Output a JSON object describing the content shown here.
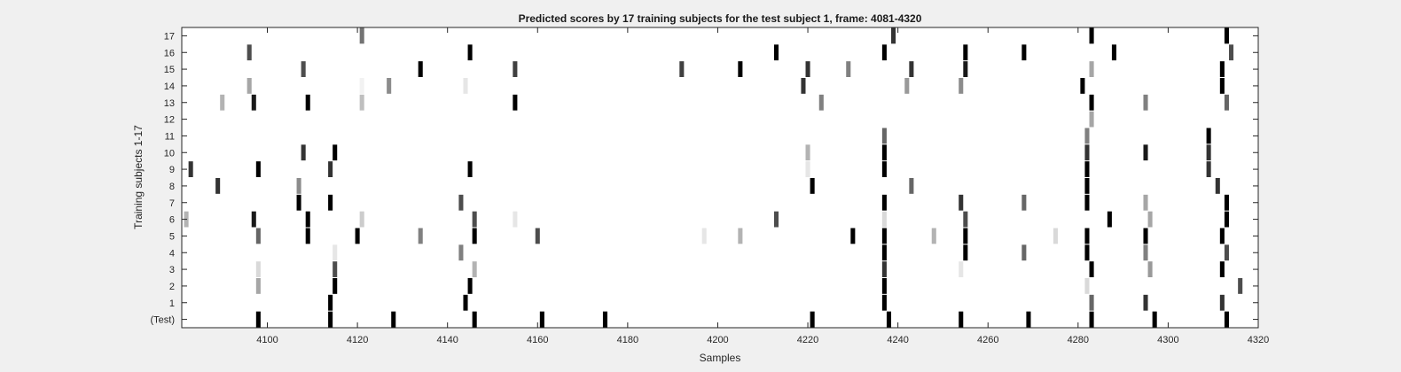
{
  "chart_data": {
    "type": "heatmap",
    "title": "Predicted scores by 17 training subjects for the test subject 1, frame: 4081-4320",
    "xlabel": "Samples",
    "ylabel": "Training subjects 1-17",
    "xlim": [
      4081,
      4320
    ],
    "x_ticks": [
      4100,
      4120,
      4140,
      4160,
      4180,
      4200,
      4220,
      4240,
      4260,
      4280,
      4300,
      4320
    ],
    "y_tick_labels": [
      "(Test)",
      "1",
      "2",
      "3",
      "4",
      "5",
      "6",
      "7",
      "8",
      "9",
      "10",
      "11",
      "12",
      "13",
      "14",
      "15",
      "16",
      "17"
    ],
    "colormap": "gray-inverted (white = 0, black = 1)",
    "grid": false,
    "rows": [
      {
        "label": "(Test)",
        "marks": [
          [
            4098,
            1
          ],
          [
            4114,
            1
          ],
          [
            4128,
            1
          ],
          [
            4146,
            1
          ],
          [
            4161,
            1
          ],
          [
            4175,
            1
          ],
          [
            4221,
            1
          ],
          [
            4238,
            1
          ],
          [
            4254,
            1
          ],
          [
            4269,
            1
          ],
          [
            4283,
            1
          ],
          [
            4297,
            1
          ],
          [
            4313,
            1
          ]
        ]
      },
      {
        "label": "1",
        "marks": [
          [
            4144,
            1
          ],
          [
            4114,
            1
          ],
          [
            4237,
            1
          ],
          [
            4283,
            0.6
          ],
          [
            4295,
            0.8
          ],
          [
            4312,
            0.8
          ]
        ]
      },
      {
        "label": "2",
        "marks": [
          [
            4098,
            0.35
          ],
          [
            4115,
            1
          ],
          [
            4145,
            1
          ],
          [
            4237,
            1
          ],
          [
            4282,
            0.15
          ],
          [
            4316,
            0.7
          ]
        ]
      },
      {
        "label": "3",
        "marks": [
          [
            4098,
            0.15
          ],
          [
            4115,
            0.7
          ],
          [
            4146,
            0.3
          ],
          [
            4237,
            0.8
          ],
          [
            4254,
            0.1
          ],
          [
            4283,
            1
          ],
          [
            4296,
            0.4
          ],
          [
            4312,
            1
          ]
        ]
      },
      {
        "label": "4",
        "marks": [
          [
            4115,
            0.1
          ],
          [
            4143,
            0.5
          ],
          [
            4237,
            1
          ],
          [
            4255,
            1
          ],
          [
            4268,
            0.6
          ],
          [
            4282,
            1
          ],
          [
            4295,
            0.5
          ],
          [
            4313,
            0.7
          ]
        ]
      },
      {
        "label": "5",
        "marks": [
          [
            4098,
            0.6
          ],
          [
            4109,
            1
          ],
          [
            4120,
            1
          ],
          [
            4134,
            0.5
          ],
          [
            4146,
            1
          ],
          [
            4160,
            0.7
          ],
          [
            4197,
            0.1
          ],
          [
            4205,
            0.3
          ],
          [
            4230,
            1
          ],
          [
            4237,
            1
          ],
          [
            4248,
            0.3
          ],
          [
            4255,
            1
          ],
          [
            4275,
            0.15
          ],
          [
            4282,
            1
          ],
          [
            4295,
            1
          ],
          [
            4312,
            1
          ]
        ]
      },
      {
        "label": "6",
        "marks": [
          [
            4082,
            0.3
          ],
          [
            4097,
            0.9
          ],
          [
            4109,
            1
          ],
          [
            4121,
            0.2
          ],
          [
            4146,
            0.7
          ],
          [
            4155,
            0.1
          ],
          [
            4213,
            0.7
          ],
          [
            4237,
            0.15
          ],
          [
            4255,
            0.7
          ],
          [
            4287,
            1
          ],
          [
            4296,
            0.35
          ],
          [
            4313,
            1
          ]
        ]
      },
      {
        "label": "7",
        "marks": [
          [
            4107,
            1
          ],
          [
            4114,
            1
          ],
          [
            4143,
            0.7
          ],
          [
            4237,
            1
          ],
          [
            4254,
            0.8
          ],
          [
            4268,
            0.6
          ],
          [
            4282,
            1
          ],
          [
            4295,
            0.35
          ],
          [
            4313,
            1
          ]
        ]
      },
      {
        "label": "8",
        "marks": [
          [
            4089,
            0.8
          ],
          [
            4107,
            0.45
          ],
          [
            4221,
            1
          ],
          [
            4243,
            0.6
          ],
          [
            4282,
            1
          ],
          [
            4311,
            0.8
          ]
        ]
      },
      {
        "label": "9",
        "marks": [
          [
            4083,
            0.8
          ],
          [
            4098,
            1
          ],
          [
            4114,
            0.8
          ],
          [
            4145,
            1
          ],
          [
            4220,
            0.1
          ],
          [
            4237,
            1
          ],
          [
            4282,
            1
          ],
          [
            4309,
            0.8
          ]
        ]
      },
      {
        "label": "10",
        "marks": [
          [
            4108,
            0.8
          ],
          [
            4115,
            1
          ],
          [
            4220,
            0.3
          ],
          [
            4237,
            1
          ],
          [
            4282,
            0.8
          ],
          [
            4295,
            0.9
          ],
          [
            4309,
            0.8
          ]
        ]
      },
      {
        "label": "11",
        "marks": [
          [
            4237,
            0.6
          ],
          [
            4282,
            0.5
          ],
          [
            4309,
            1
          ]
        ]
      },
      {
        "label": "12",
        "marks": [
          [
            4283,
            0.35
          ]
        ]
      },
      {
        "label": "13",
        "marks": [
          [
            4090,
            0.3
          ],
          [
            4097,
            0.9
          ],
          [
            4109,
            1
          ],
          [
            4121,
            0.25
          ],
          [
            4155,
            1
          ],
          [
            4223,
            0.5
          ],
          [
            4283,
            1
          ],
          [
            4295,
            0.5
          ],
          [
            4313,
            0.6
          ]
        ]
      },
      {
        "label": "14",
        "marks": [
          [
            4096,
            0.35
          ],
          [
            4121,
            0.05
          ],
          [
            4127,
            0.45
          ],
          [
            4144,
            0.1
          ],
          [
            4219,
            0.8
          ],
          [
            4242,
            0.4
          ],
          [
            4254,
            0.45
          ],
          [
            4281,
            1
          ],
          [
            4312,
            1
          ]
        ]
      },
      {
        "label": "15",
        "marks": [
          [
            4108,
            0.7
          ],
          [
            4134,
            1
          ],
          [
            4155,
            0.75
          ],
          [
            4192,
            0.75
          ],
          [
            4205,
            1
          ],
          [
            4220,
            0.8
          ],
          [
            4229,
            0.5
          ],
          [
            4243,
            0.8
          ],
          [
            4255,
            0.9
          ],
          [
            4283,
            0.35
          ],
          [
            4312,
            1
          ]
        ]
      },
      {
        "label": "16",
        "marks": [
          [
            4096,
            0.7
          ],
          [
            4145,
            1
          ],
          [
            4213,
            1
          ],
          [
            4237,
            1
          ],
          [
            4255,
            1
          ],
          [
            4268,
            1
          ],
          [
            4288,
            1
          ],
          [
            4314,
            0.7
          ]
        ]
      },
      {
        "label": "17",
        "marks": [
          [
            4121,
            0.55
          ],
          [
            4239,
            0.8
          ],
          [
            4283,
            1
          ],
          [
            4313,
            1
          ]
        ]
      }
    ]
  }
}
